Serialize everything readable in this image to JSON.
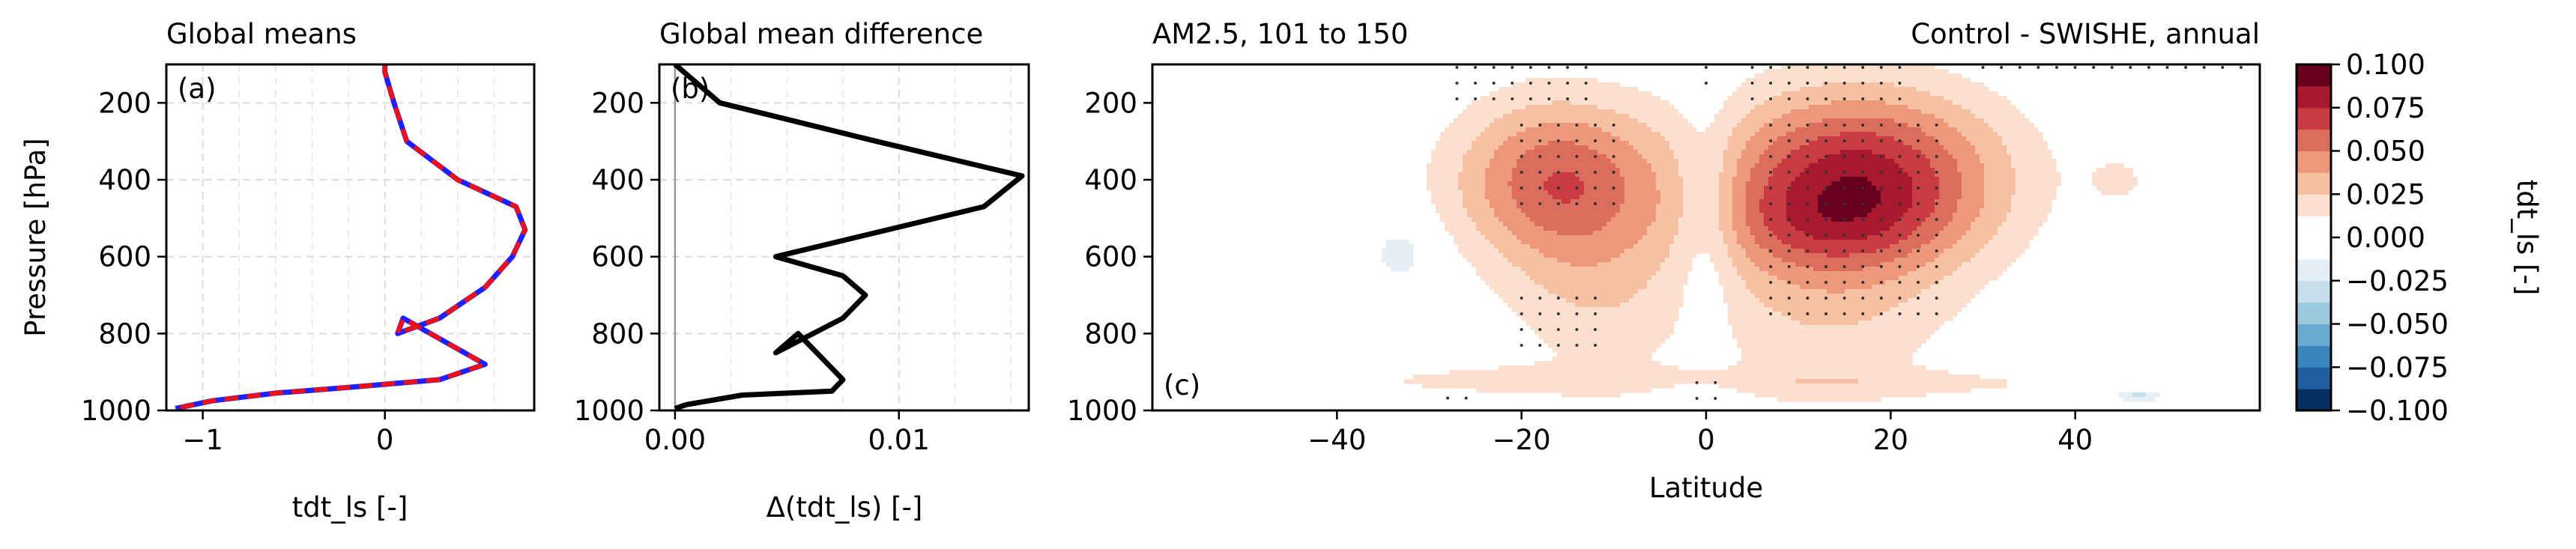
{
  "chart_data": [
    {
      "type": "line",
      "panel_label": "(a)",
      "title": "Global means",
      "xlabel": "tdt_ls [-]",
      "ylabel": "Pressure [hPa]",
      "xlim": [
        -1.2,
        0.82
      ],
      "ylim": [
        1000,
        100
      ],
      "x_ticks": [
        -1,
        0
      ],
      "x_tick_labels": [
        "−1",
        "0"
      ],
      "y_ticks": [
        200,
        400,
        600,
        800,
        1000
      ],
      "y_tick_labels": [
        "200",
        "400",
        "600",
        "800",
        "1000"
      ],
      "grid": true,
      "series": [
        {
          "color": "#1f1fff",
          "dash": "solid",
          "points": [
            [
              0,
              100
            ],
            [
              0,
              120
            ],
            [
              0.05,
              200
            ],
            [
              0.12,
              300
            ],
            [
              0.4,
              400
            ],
            [
              0.72,
              470
            ],
            [
              0.77,
              530
            ],
            [
              0.7,
              600
            ],
            [
              0.55,
              680
            ],
            [
              0.3,
              760
            ],
            [
              0.07,
              800
            ],
            [
              0.1,
              760
            ],
            [
              0.55,
              880
            ],
            [
              0.3,
              920
            ],
            [
              -0.2,
              940
            ],
            [
              -0.6,
              955
            ],
            [
              -0.95,
              975
            ],
            [
              -1.15,
              995
            ]
          ]
        },
        {
          "color": "#ee1111",
          "dash": "dashed",
          "points": [
            [
              0,
              100
            ],
            [
              0,
              120
            ],
            [
              0.05,
              200
            ],
            [
              0.12,
              300
            ],
            [
              0.4,
              400
            ],
            [
              0.72,
              470
            ],
            [
              0.77,
              530
            ],
            [
              0.7,
              600
            ],
            [
              0.55,
              680
            ],
            [
              0.3,
              760
            ],
            [
              0.07,
              800
            ],
            [
              0.1,
              760
            ],
            [
              0.55,
              880
            ],
            [
              0.3,
              920
            ],
            [
              -0.2,
              940
            ],
            [
              -0.6,
              955
            ],
            [
              -0.95,
              975
            ],
            [
              -1.15,
              995
            ]
          ]
        }
      ]
    },
    {
      "type": "line",
      "panel_label": "(b)",
      "title": "Global mean difference",
      "xlabel": "Δ(tdt_ls) [-]",
      "xlim": [
        -0.0007,
        0.0158
      ],
      "ylim": [
        1000,
        100
      ],
      "x_ticks": [
        0,
        0.01
      ],
      "x_tick_labels": [
        "0.00",
        "0.01"
      ],
      "y_ticks": [
        200,
        400,
        600,
        800,
        1000
      ],
      "y_tick_labels": [
        "200",
        "400",
        "600",
        "800",
        "1000"
      ],
      "grid": true,
      "series": [
        {
          "color": "#000000",
          "dash": "solid",
          "points": [
            [
              0,
              100
            ],
            [
              0.002,
              200
            ],
            [
              0.009,
              300
            ],
            [
              0.0155,
              390
            ],
            [
              0.0138,
              470
            ],
            [
              0.0045,
              600
            ],
            [
              0.0075,
              650
            ],
            [
              0.0085,
              700
            ],
            [
              0.0075,
              760
            ],
            [
              0.0045,
              850
            ],
            [
              0.0055,
              800
            ],
            [
              0.0075,
              920
            ],
            [
              0.007,
              950
            ],
            [
              0.003,
              960
            ],
            [
              0.0005,
              985
            ],
            [
              0,
              995
            ]
          ]
        }
      ]
    },
    {
      "type": "heatmap",
      "panel_label": "(c)",
      "title_left": "AM2.5, 101 to 150",
      "title_right": "Control - SWISHE, annual",
      "xlabel": "Latitude",
      "xlim": [
        -60,
        60
      ],
      "ylim": [
        1000,
        100
      ],
      "x_ticks": [
        -40,
        -20,
        0,
        20,
        40
      ],
      "x_tick_labels": [
        "−40",
        "−20",
        "0",
        "20",
        "40"
      ],
      "y_ticks": [
        200,
        400,
        600,
        800,
        1000
      ],
      "y_tick_labels": [
        "200",
        "400",
        "600",
        "800",
        "1000"
      ],
      "colorbar": {
        "label": "tdt_ls [-]",
        "min": -0.1,
        "max": 0.1,
        "ticks": [
          0.1,
          0.075,
          0.05,
          0.025,
          0,
          -0.025,
          -0.05,
          -0.075,
          -0.1
        ],
        "tick_labels": [
          "0.100",
          "0.075",
          "0.050",
          "0.025",
          "0.000",
          "−0.025",
          "−0.050",
          "−0.075",
          "−0.100"
        ],
        "levels": [
          "#053061",
          "#1f5f9f",
          "#3a87bd",
          "#6aaad1",
          "#9cc8e0",
          "#c6dfed",
          "#e5eff5",
          "#ffffff",
          "#ffffff",
          "#fbe0d0",
          "#f7c0a3",
          "#ee987b",
          "#dc6c5c",
          "#c73b41",
          "#a8192f",
          "#67001f"
        ]
      },
      "blobs": [
        {
          "lat": -16,
          "p": 400,
          "dlat": 8,
          "dp": 150,
          "amp": 0.06
        },
        {
          "lat": -12,
          "p": 700,
          "dlat": 7,
          "dp": 160,
          "amp": 0.02
        },
        {
          "lat": 17,
          "p": 390,
          "dlat": 11,
          "dp": 160,
          "amp": 0.07
        },
        {
          "lat": 13,
          "p": 650,
          "dlat": 10,
          "dp": 250,
          "amp": 0.025
        },
        {
          "lat": 12,
          "p": 520,
          "dlat": 9,
          "dp": 80,
          "amp": 0.015
        },
        {
          "lat": 0,
          "p": 480,
          "dlat": 2.5,
          "dp": 200,
          "amp": -0.022
        },
        {
          "lat": -33,
          "p": 590,
          "dlat": 2.5,
          "dp": 60,
          "amp": -0.02
        },
        {
          "lat": -23,
          "p": 920,
          "dlat": 14,
          "dp": 30,
          "amp": 0.014
        },
        {
          "lat": 20,
          "p": 930,
          "dlat": 26,
          "dp": 25,
          "amp": 0.012
        },
        {
          "lat": 45,
          "p": 400,
          "dlat": 3,
          "dp": 60,
          "amp": 0.012
        },
        {
          "lat": -38,
          "p": 820,
          "dlat": 2,
          "dp": 30,
          "amp": 0.012
        },
        {
          "lat": -1,
          "p": 970,
          "dlat": 3,
          "dp": 25,
          "amp": -0.02
        },
        {
          "lat": 47,
          "p": 960,
          "dlat": 2,
          "dp": 12,
          "amp": -0.03
        },
        {
          "lat": 55,
          "p": 830,
          "dlat": 2,
          "dp": 40,
          "amp": 0.012
        }
      ],
      "stipple_regions": [
        {
          "lat": [
            -27,
            -12
          ],
          "p": [
            100,
            200
          ]
        },
        {
          "lat": [
            -20,
            -10
          ],
          "p": [
            250,
            500
          ]
        },
        {
          "lat": [
            -20,
            -12
          ],
          "p": [
            700,
            850
          ]
        },
        {
          "lat": [
            0,
            0
          ],
          "p": [
            100,
            180
          ]
        },
        {
          "lat": [
            5,
            22
          ],
          "p": [
            100,
            200
          ]
        },
        {
          "lat": [
            7,
            25
          ],
          "p": [
            250,
            750
          ]
        },
        {
          "lat": [
            30,
            58
          ],
          "p": [
            100,
            120
          ]
        },
        {
          "lat": [
            -28,
            -26
          ],
          "p": [
            960,
            990
          ]
        },
        {
          "lat": [
            -1,
            1
          ],
          "p": [
            920,
            990
          ]
        }
      ]
    }
  ]
}
